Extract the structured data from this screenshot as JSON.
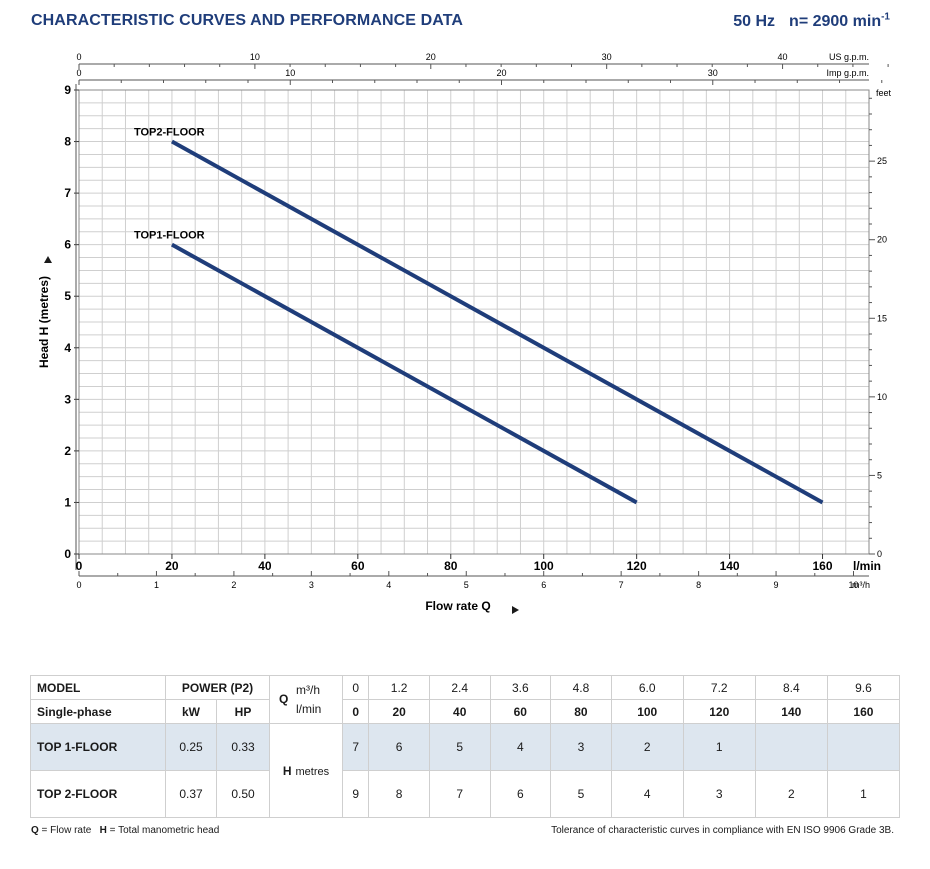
{
  "header": {
    "title": "CHARACTERISTIC CURVES AND PERFORMANCE DATA",
    "frequency": "50 Hz",
    "speed_prefix": "n= 2900 min",
    "speed_sup": "-1"
  },
  "chart_data": {
    "type": "line",
    "x": [
      20,
      160
    ],
    "xlabel": "Flow rate Q",
    "ylabel": "Head H (metres)",
    "xlim": [
      0,
      170
    ],
    "ylim": [
      0,
      9
    ],
    "x_unit": "l/min",
    "x_ticks": [
      0,
      20,
      40,
      60,
      80,
      100,
      120,
      140,
      160
    ],
    "y_ticks": [
      0,
      1,
      2,
      3,
      4,
      5,
      6,
      7,
      8,
      9
    ],
    "grid": true,
    "series": [
      {
        "name": "TOP1-FLOOR",
        "x": [
          20,
          120
        ],
        "values": [
          6,
          1
        ]
      },
      {
        "name": "TOP2-FLOOR",
        "x": [
          20,
          160
        ],
        "values": [
          8,
          1
        ]
      }
    ],
    "secondary_axes": {
      "us_gpm": {
        "label": "US g.p.m.",
        "ticks": [
          0,
          10,
          20,
          30,
          40
        ]
      },
      "imp_gpm": {
        "label": "Imp g.p.m.",
        "ticks": [
          0,
          10,
          20,
          30
        ]
      },
      "m3h": {
        "label": "m³/h",
        "ticks": [
          0,
          1,
          2,
          3,
          4,
          5,
          6,
          7,
          8,
          9,
          10
        ]
      },
      "feet": {
        "label": "feet",
        "ticks": [
          0,
          5,
          10,
          15,
          20,
          25
        ]
      }
    },
    "colors": {
      "curve": "#1f3d7a"
    }
  },
  "table": {
    "h_model": "MODEL",
    "h_power": "POWER (P2)",
    "h_q": "Q",
    "u_m3h": "m³/h",
    "u_lmin": "l/min",
    "h_single": "Single-phase",
    "h_kw": "kW",
    "h_hp": "HP",
    "q_m3h": [
      "0",
      "1.2",
      "2.4",
      "3.6",
      "4.8",
      "6.0",
      "7.2",
      "8.4",
      "9.6"
    ],
    "q_lmin": [
      "0",
      "20",
      "40",
      "60",
      "80",
      "100",
      "120",
      "140",
      "160"
    ],
    "h_label": "H",
    "h_unit": "metres",
    "rows": [
      {
        "model": "TOP 1-FLOOR",
        "kw": "0.25",
        "hp": "0.33",
        "h": [
          "7",
          "6",
          "5",
          "4",
          "3",
          "2",
          "1",
          "",
          ""
        ]
      },
      {
        "model": "TOP 2-FLOOR",
        "kw": "0.37",
        "hp": "0.50",
        "h": [
          "9",
          "8",
          "7",
          "6",
          "5",
          "4",
          "3",
          "2",
          "1"
        ]
      }
    ]
  },
  "footer": {
    "q_key": "Q",
    "q_def": " = Flow rate",
    "h_key": "H",
    "h_def": " = Total manometric head",
    "tolerance": "Tolerance of characteristic curves in compliance with EN ISO 9906 Grade 3B."
  }
}
